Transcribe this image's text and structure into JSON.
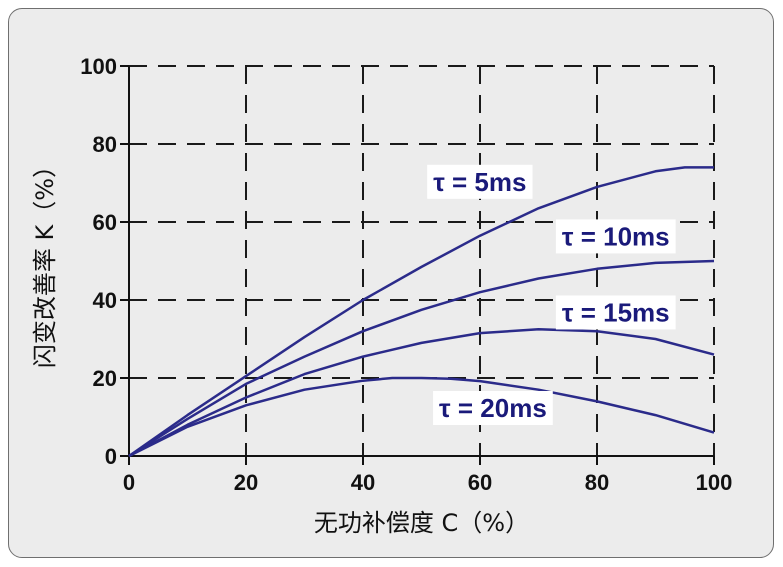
{
  "chart_data": {
    "type": "line",
    "xlabel": "无功补偿度 C（%）",
    "ylabel": "闪变改善率 K（%）",
    "xlim": [
      0,
      100
    ],
    "ylim": [
      0,
      100
    ],
    "xticks": [
      0,
      20,
      40,
      60,
      80,
      100
    ],
    "yticks": [
      0,
      20,
      40,
      60,
      80,
      100
    ],
    "grid": true,
    "colors": {
      "series": "#2b2b8a",
      "grid": "#1a1a1a"
    },
    "series": [
      {
        "name": "τ = 5ms",
        "x": [
          0,
          10,
          20,
          30,
          40,
          50,
          60,
          70,
          80,
          90,
          95,
          100
        ],
        "y": [
          0,
          10.5,
          20.5,
          30.5,
          40,
          48.5,
          56.5,
          63.5,
          69,
          73,
          74,
          74
        ]
      },
      {
        "name": "τ = 10ms",
        "x": [
          0,
          10,
          20,
          30,
          40,
          50,
          60,
          70,
          80,
          90,
          100
        ],
        "y": [
          0,
          9.5,
          18.5,
          25.5,
          32,
          37.5,
          42,
          45.5,
          48,
          49.5,
          50
        ]
      },
      {
        "name": "τ = 15ms",
        "x": [
          0,
          10,
          20,
          30,
          40,
          50,
          60,
          70,
          80,
          90,
          100
        ],
        "y": [
          0,
          8,
          15,
          21,
          25.5,
          29,
          31.5,
          32.5,
          32,
          30,
          26
        ]
      },
      {
        "name": "τ = 20ms",
        "x": [
          0,
          10,
          20,
          30,
          40,
          45,
          50,
          55,
          60,
          70,
          80,
          90,
          100
        ],
        "y": [
          0,
          7.5,
          13,
          17,
          19.3,
          20,
          20,
          19.8,
          19.2,
          17,
          14,
          10.5,
          6
        ]
      }
    ]
  }
}
